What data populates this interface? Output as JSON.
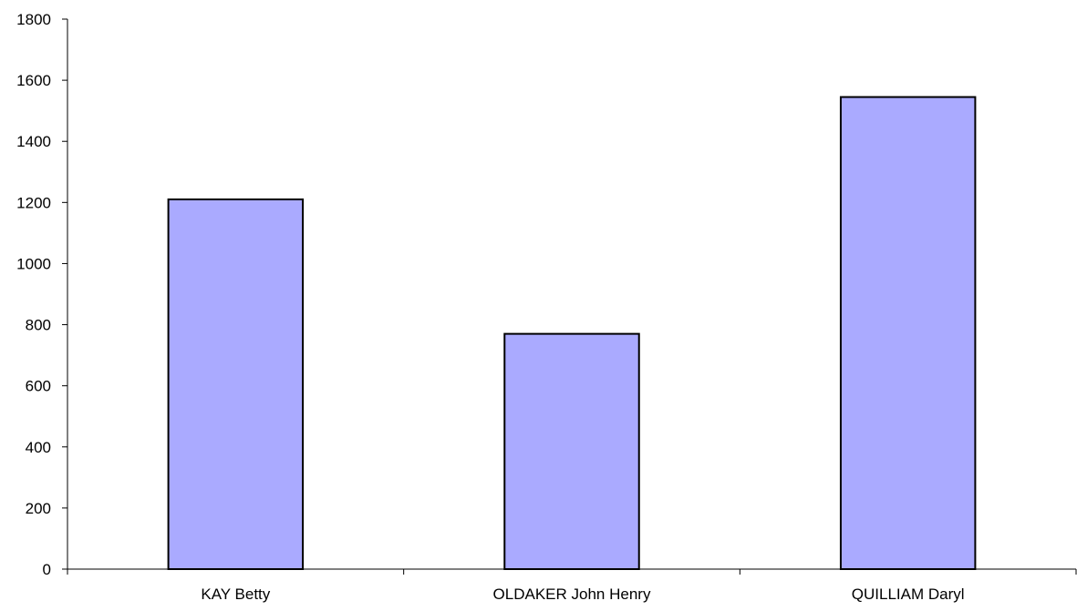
{
  "chart_data": {
    "type": "bar",
    "title": "",
    "xlabel": "",
    "ylabel": "",
    "categories": [
      "KAY Betty",
      "OLDAKER John Henry",
      "QUILLIAM Daryl"
    ],
    "values": [
      1210,
      770,
      1545
    ],
    "ylim": [
      0,
      1800
    ],
    "yticks": [
      0,
      200,
      400,
      600,
      800,
      1000,
      1200,
      1400,
      1600,
      1800
    ],
    "ytick_labels": [
      "0",
      "200",
      "400",
      "600",
      "800",
      "1000",
      "1200",
      "1400",
      "1600",
      "1800"
    ],
    "grid": false,
    "legend": "none",
    "bar_color": "#aaaaff",
    "bar_edge_color": "#000000"
  }
}
